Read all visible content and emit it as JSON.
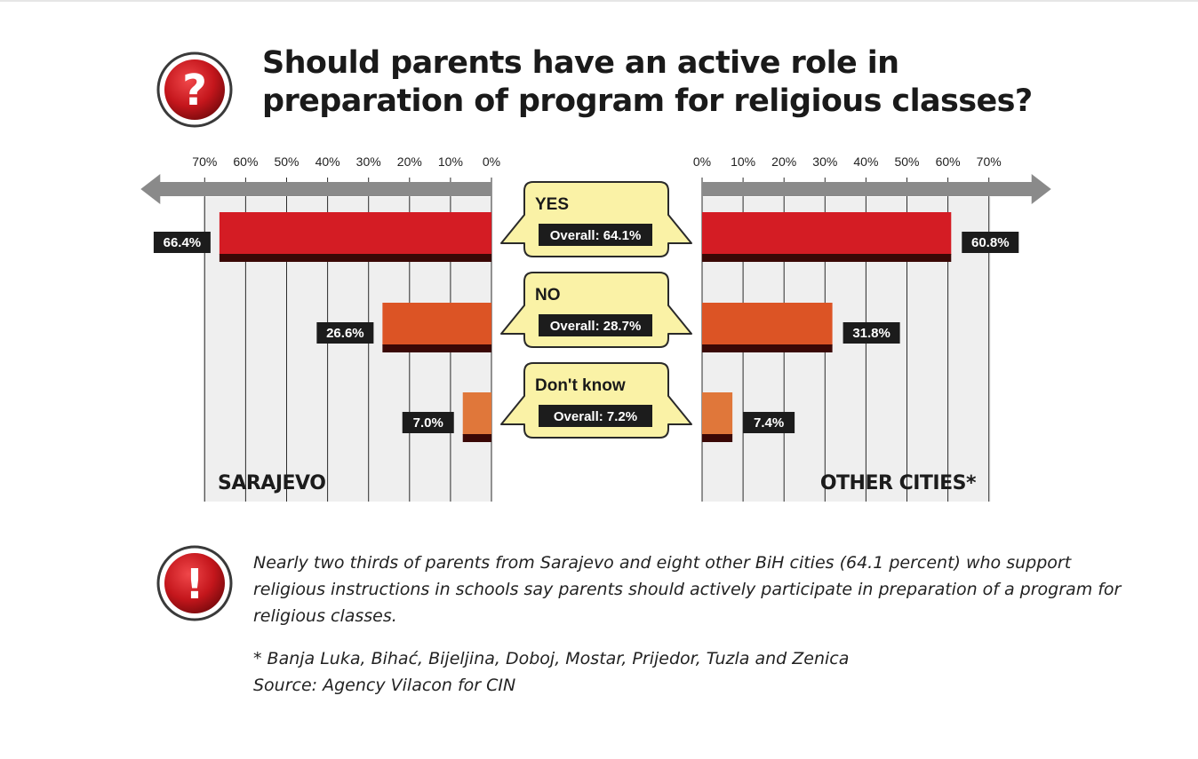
{
  "title_lines": [
    "Should parents have an active role in",
    "preparation of program for religious classes?"
  ],
  "icons": {
    "question": "question-mark-icon",
    "alert": "exclamation-icon"
  },
  "colors": {
    "yes": "#d41c24",
    "no": "#dc5425",
    "dont_know": "#e0773a",
    "bubble": "#faf2a6",
    "axis_arrow": "#8a8a8a",
    "panel": "#efefef"
  },
  "chart_data": {
    "type": "bar",
    "orientation": "horizontal-butterfly",
    "categories": [
      "YES",
      "NO",
      "Don't know"
    ],
    "overall_labels": [
      "Overall: 64.1%",
      "Overall: 28.7%",
      "Overall: 7.2%"
    ],
    "overall": [
      64.1,
      28.7,
      7.2
    ],
    "series": [
      {
        "name": "SARAJEVO",
        "values": [
          66.4,
          26.6,
          7.0
        ],
        "labels": [
          "66.4%",
          "26.6%",
          "7.0%"
        ]
      },
      {
        "name": "OTHER CITIES*",
        "values": [
          60.8,
          31.8,
          7.4
        ],
        "labels": [
          "60.8%",
          "31.8%",
          "7.4%"
        ]
      }
    ],
    "xlim": [
      0,
      70
    ],
    "ticks": [
      "0%",
      "10%",
      "20%",
      "30%",
      "40%",
      "50%",
      "60%",
      "70%"
    ],
    "grid": true
  },
  "note": "Nearly two thirds of parents from Sarajevo and eight other BiH cities (64.1 percent) who support religious instructions in schools say parents should actively participate in preparation of a program for religious classes.",
  "footnote": "* Banja Luka, Bihać, Bijeljina, Doboj, Mostar, Prijedor, Tuzla and Zenica",
  "source": "Source: Agency Vilacon for CIN"
}
